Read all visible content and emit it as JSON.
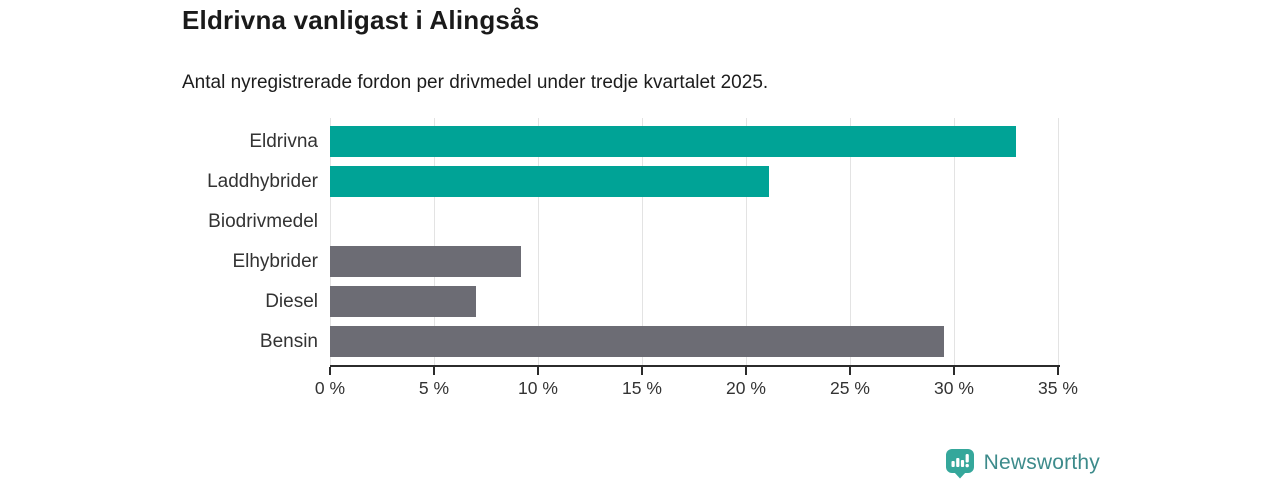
{
  "title": "Eldrivna vanligast i Alingsås",
  "subtitle": "Antal nyregistrerade fordon per drivmedel under tredje kvartalet 2025.",
  "chart_data": {
    "type": "bar",
    "orientation": "horizontal",
    "title": "Eldrivna vanligast i Alingsås",
    "subtitle": "Antal nyregistrerade fordon per drivmedel under tredje kvartalet 2025.",
    "categories": [
      "Eldrivna",
      "Laddhybrider",
      "Biodrivmedel",
      "Elhybrider",
      "Diesel",
      "Bensin"
    ],
    "values": [
      33.0,
      21.1,
      0,
      9.2,
      7.0,
      29.5
    ],
    "unit": "%",
    "xlim": [
      0,
      35
    ],
    "x_tick_values": [
      0,
      5,
      10,
      15,
      20,
      25,
      30,
      35
    ],
    "x_tick_labels": [
      "0 %",
      "5 %",
      "10 %",
      "15 %",
      "20 %",
      "25 %",
      "30 %",
      "35 %"
    ],
    "grid": true,
    "bar_colors": [
      "#00A396",
      "#00A396",
      "#6C6C74",
      "#6C6C74",
      "#6C6C74",
      "#6C6C74"
    ],
    "highlight_color": "#00A396",
    "default_color": "#6C6C74",
    "gridline_color": "#e3e3e3",
    "axis_color": "#2b2b2b",
    "label_color": "#333333"
  },
  "footer": {
    "brand": "Newsworthy",
    "brand_color": "#3d8b8b",
    "logo_icon": "newsworthy-pin-barchart-icon",
    "logo_color": "#35a79b"
  }
}
